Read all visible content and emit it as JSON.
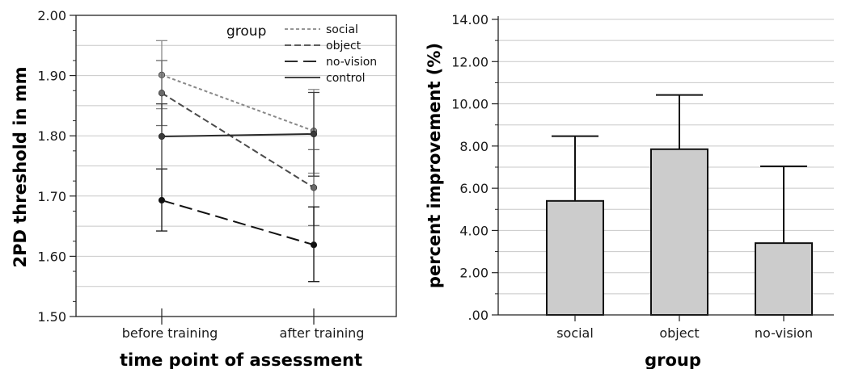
{
  "chart_data": [
    {
      "type": "line",
      "xlabel": "time point of assessment",
      "ylabel": "2PD threshold in mm",
      "categories": [
        "before training",
        "after training"
      ],
      "ylim": [
        1.5,
        2.0
      ],
      "yticks": [
        "1.50",
        "1.60",
        "1.70",
        "1.80",
        "1.90",
        "2.00"
      ],
      "grid": true,
      "legend_title": "group",
      "legend_position": "top-right",
      "series": [
        {
          "name": "social",
          "values": [
            1.901,
            1.808
          ],
          "err_low": [
            1.845,
            1.738
          ],
          "err_high": [
            1.958,
            1.877
          ],
          "color": "#888888",
          "marker": "#8a8a8a",
          "dash": "short"
        },
        {
          "name": "object",
          "values": [
            1.871,
            1.714
          ],
          "err_low": [
            1.817,
            1.651
          ],
          "err_high": [
            1.925,
            1.777
          ],
          "color": "#4a4a4a",
          "marker": "#6a6a6a",
          "dash": "medium"
        },
        {
          "name": "no-vision",
          "values": [
            1.693,
            1.619
          ],
          "err_low": [
            1.642,
            1.558
          ],
          "err_high": [
            1.745,
            1.682
          ],
          "color": "#111111",
          "marker": "#111111",
          "dash": "long"
        },
        {
          "name": "control",
          "values": [
            1.799,
            1.803
          ],
          "err_low": [
            1.745,
            1.733
          ],
          "err_high": [
            1.853,
            1.872
          ],
          "color": "#2a2a2a",
          "marker": "#3a3a3a",
          "dash": "solid"
        }
      ]
    },
    {
      "type": "bar",
      "xlabel": "group",
      "ylabel": "percent improvement (%)",
      "categories": [
        "social",
        "object",
        "no-vision"
      ],
      "values": [
        5.4,
        7.85,
        3.4
      ],
      "err_high": [
        8.47,
        10.42,
        7.04
      ],
      "ylim": [
        0,
        14
      ],
      "yticks": [
        ".00",
        "2.00",
        "4.00",
        "6.00",
        "8.00",
        "10.00",
        "12.00",
        "14.00"
      ],
      "grid": true,
      "bar_color": "#cccccc"
    }
  ]
}
